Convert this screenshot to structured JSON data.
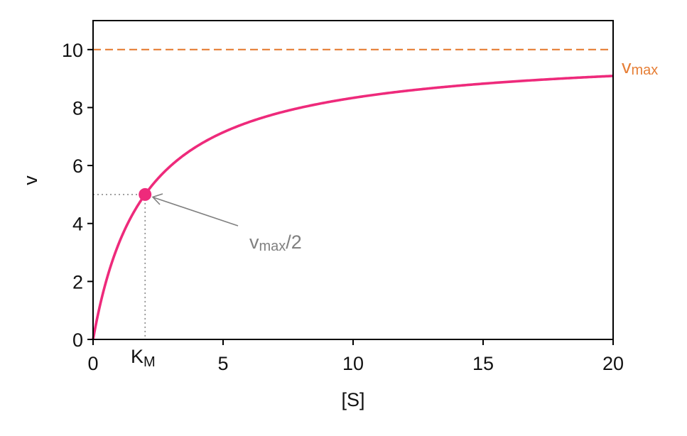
{
  "chart_data": {
    "type": "line",
    "xlabel": "[S]",
    "ylabel": "v",
    "xlim": [
      0,
      20
    ],
    "ylim": [
      0,
      11
    ],
    "xticks": [
      "0",
      "5",
      "10",
      "15",
      "20"
    ],
    "yticks": [
      "0",
      "2",
      "4",
      "6",
      "8",
      "10"
    ],
    "grid": false,
    "parameters": {
      "vmax": 10,
      "km": 2
    },
    "series": [
      {
        "x": [
          0,
          0.5,
          1,
          1.5,
          2,
          3,
          4,
          5,
          6,
          7,
          8,
          9,
          10,
          12,
          14,
          16,
          18,
          20
        ],
        "y": [
          0,
          2.0,
          3.33,
          4.29,
          5.0,
          6.0,
          6.67,
          7.14,
          7.5,
          7.78,
          8.0,
          8.18,
          8.33,
          8.57,
          8.75,
          8.89,
          9.0,
          9.09
        ],
        "color": "#ee2a7b"
      }
    ],
    "vmax_line": {
      "y": 10,
      "color": "#e67e35",
      "style": "dashed",
      "label_base": "v",
      "label_sub": "max"
    },
    "half_point": {
      "x": 2,
      "y": 5,
      "color": "#ee2a7b"
    },
    "km_label": {
      "base": "K",
      "sub": "M"
    },
    "annotation": {
      "base": "v",
      "sub": "max",
      "suffix": "/2",
      "color": "#808080"
    }
  }
}
